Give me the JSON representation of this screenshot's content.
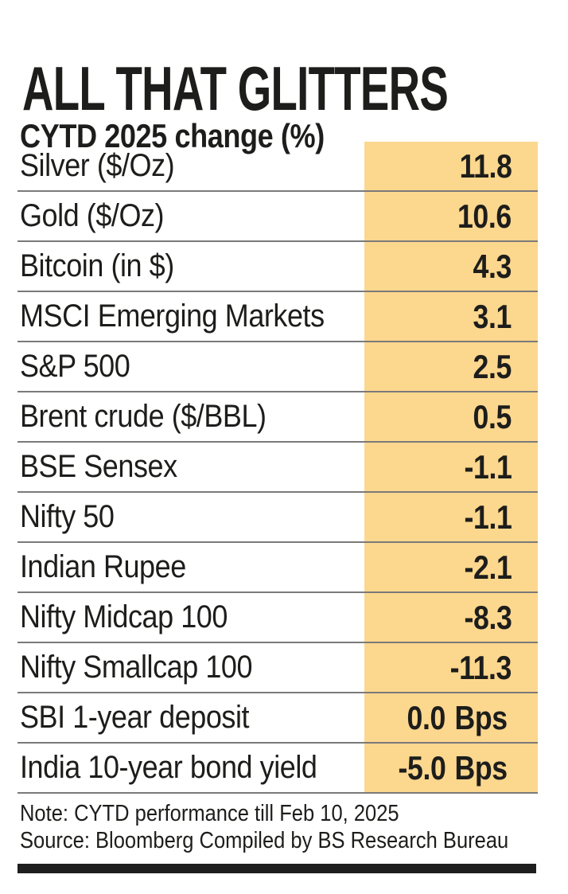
{
  "header": {
    "title": "ALL THAT GLITTERS",
    "subtitle": "CYTD 2025 change (%)"
  },
  "table": {
    "rows": [
      {
        "label": "Silver ($/Oz)",
        "value": "11.8",
        "unit": ""
      },
      {
        "label": "Gold ($/Oz)",
        "value": "10.6",
        "unit": ""
      },
      {
        "label": "Bitcoin (in $)",
        "value": "4.3",
        "unit": ""
      },
      {
        "label": "MSCI Emerging Markets",
        "value": "3.1",
        "unit": ""
      },
      {
        "label": "S&P 500",
        "value": "2.5",
        "unit": ""
      },
      {
        "label": "Brent crude ($/BBL)",
        "value": "0.5",
        "unit": ""
      },
      {
        "label": "BSE Sensex",
        "value": "-1.1",
        "unit": ""
      },
      {
        "label": "Nifty 50",
        "value": "-1.1",
        "unit": ""
      },
      {
        "label": "Indian Rupee",
        "value": "-2.1",
        "unit": ""
      },
      {
        "label": "Nifty Midcap 100",
        "value": "-8.3",
        "unit": ""
      },
      {
        "label": "Nifty Smallcap 100",
        "value": "-11.3",
        "unit": ""
      },
      {
        "label": "SBI 1-year deposit",
        "value": "0.0",
        "unit": "Bps"
      },
      {
        "label": "India 10-year bond yield",
        "value": "-5.0",
        "unit": "Bps"
      }
    ]
  },
  "footer": {
    "note": "Note: CYTD performance till Feb 10, 2025",
    "source": "Source: Bloomberg Compiled by BS Research Bureau"
  },
  "colors": {
    "highlight_column": "#FCD78E",
    "divider_line": "#858585",
    "text": "#1D1D1B",
    "bottom_bar": "#1E1E1E"
  },
  "chart_data": {
    "type": "table",
    "title": "ALL THAT GLITTERS",
    "subtitle": "CYTD 2025 change (%)",
    "categories": [
      "Silver ($/Oz)",
      "Gold ($/Oz)",
      "Bitcoin (in $)",
      "MSCI Emerging Markets",
      "S&P 500",
      "Brent crude ($/BBL)",
      "BSE Sensex",
      "Nifty 50",
      "Indian Rupee",
      "Nifty Midcap 100",
      "Nifty Smallcap 100",
      "SBI 1-year deposit",
      "India 10-year bond yield"
    ],
    "values": [
      11.8,
      10.6,
      4.3,
      3.1,
      2.5,
      0.5,
      -1.1,
      -1.1,
      -2.1,
      -8.3,
      -11.3,
      0.0,
      -5.0
    ],
    "value_units": [
      "%",
      "%",
      "%",
      "%",
      "%",
      "%",
      "%",
      "%",
      "%",
      "%",
      "%",
      "Bps",
      "Bps"
    ],
    "note": "Note: CYTD performance till Feb 10, 2025",
    "source": "Source: Bloomberg Compiled by BS Research Bureau",
    "layout": {
      "value_column_highlighted": true,
      "row_dividers": true
    }
  }
}
